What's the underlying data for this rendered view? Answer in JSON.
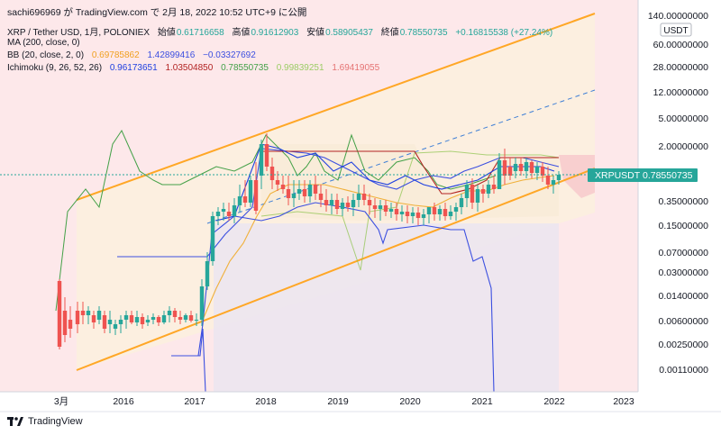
{
  "header": {
    "publisher_line": "sachi696969 が TradingView.com で 2月 18, 2022 10:52 UTC+9 に公開"
  },
  "legend": {
    "symbol_line": {
      "name": "XRP / Tether USD, 1月, POLONIEX",
      "open_label": "始値",
      "open": "0.61716658",
      "high_label": "高値",
      "high": "0.91612903",
      "low_label": "安値",
      "low": "0.58905437",
      "close_label": "終値",
      "close": "0.78550735",
      "change": "+0.16815538 (+27.24%)"
    },
    "ma": {
      "label": "MA (200, close, 0)"
    },
    "bb": {
      "label": "BB (20, close, 2, 0)",
      "v1": "0.69785862",
      "v2": "1.42899416",
      "v3": "−0.03327692"
    },
    "ichimoku": {
      "label": "Ichimoku (9, 26, 52, 26)",
      "v1": "0.96173651",
      "v2": "1.03504850",
      "v3": "0.78550735",
      "v4": "0.99839251",
      "v5": "1.69419055"
    }
  },
  "colors": {
    "up": "#26a69a",
    "down": "#ef5350",
    "bb_basis": "#f0b03a",
    "bb_band": "#3b4fe0",
    "tenkan": "#1e3fe0",
    "kijun": "#b22222",
    "chikou": "#43a047",
    "span_a": "#8bc34a",
    "channel": "#ffa726",
    "price_line": "#26a69a"
  },
  "chart_data": {
    "type": "candlestick",
    "symbol": "XRPUSDT",
    "scale": "log",
    "y_ticks": [
      "140.00000000",
      "60.00000000",
      "28.00000000",
      "12.00000000",
      "5.00000000",
      "2.00000000",
      "0.35000000",
      "0.15000000",
      "0.07000000",
      "0.03000000",
      "0.01400000",
      "0.00600000",
      "0.00250000",
      "0.00110000"
    ],
    "y_unit": "USDT",
    "x_ticks": [
      "3月",
      "2016",
      "2017",
      "2018",
      "2019",
      "2020",
      "2021",
      "2022",
      "2023"
    ],
    "last_price_label": "XRPUSDT",
    "last_price": "0.78550735"
  },
  "footer": {
    "brand": "TradingView"
  }
}
